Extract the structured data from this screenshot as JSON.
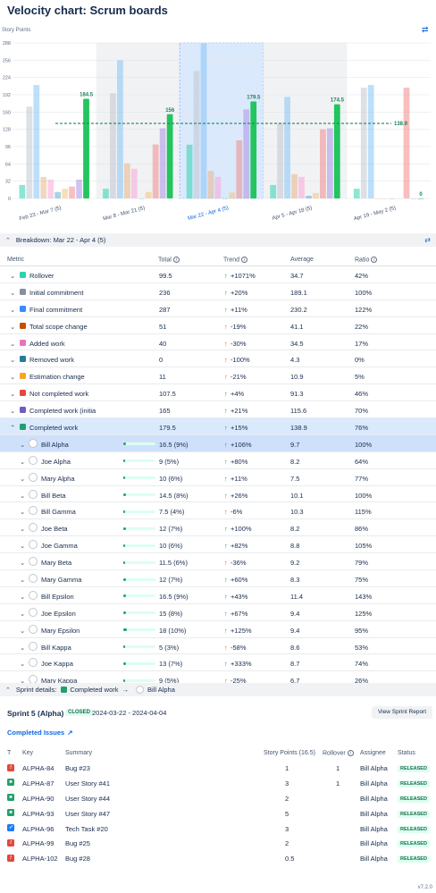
{
  "page": {
    "title": "Velocity chart: Scrum boards",
    "axis_caption": "Story Points",
    "version": "v7.2.0"
  },
  "chart_data": {
    "type": "bar",
    "ylabel": "Story Points",
    "yticks": [
      0,
      32,
      64,
      96,
      128,
      160,
      192,
      224,
      256,
      288
    ],
    "ylim": [
      0,
      288
    ],
    "categories": [
      "Feb 23 - Mar 7 (5)",
      "Mar 8 - Mar 21 (5)",
      "Mar 22 - Apr 4 (5)",
      "Apr 5 - Apr 18 (5)",
      "Apr 19 - May 2 (5)"
    ],
    "selected_category": "Mar 22 - Apr 4 (5)",
    "series": [
      {
        "name": "Rollover",
        "color": "#2cd3b1",
        "values": [
          25,
          18,
          99.5,
          25,
          18
        ]
      },
      {
        "name": "Initial commitment",
        "color": "#c1c7d0",
        "values": [
          170,
          195,
          236,
          140,
          205
        ]
      },
      {
        "name": "Final commitment",
        "color": "#85c5f5",
        "values": [
          210,
          256,
          287,
          188,
          210
        ]
      },
      {
        "name": "Total scope change",
        "color": "#e8b48a",
        "values": [
          40,
          65,
          51,
          45,
          0
        ]
      },
      {
        "name": "Added work",
        "color": "#f7a8d8",
        "values": [
          35,
          55,
          40,
          40,
          0
        ]
      },
      {
        "name": "Removed work",
        "color": "#5fb0c4",
        "values": [
          12,
          0,
          0,
          5,
          0
        ]
      },
      {
        "name": "Estimation change",
        "color": "#f5c57a",
        "values": [
          18,
          12,
          11,
          10,
          0
        ]
      },
      {
        "name": "Not completed work",
        "color": "#f08a8a",
        "values": [
          22,
          100,
          107.5,
          128,
          205
        ]
      },
      {
        "name": "Completed work (initial)",
        "color": "#a994e6",
        "values": [
          35,
          130,
          165,
          130,
          0
        ]
      },
      {
        "name": "Completed work",
        "color": "#22c55e",
        "values": [
          184.5,
          156,
          179.5,
          174.5,
          0
        ]
      }
    ],
    "average": {
      "name": "Average",
      "value": 138.9,
      "color": "#1f845a"
    },
    "bar_labels": [
      {
        "series": "Completed work",
        "values": [
          "184.5",
          "156",
          "179.5",
          "174.5",
          "0"
        ]
      }
    ]
  },
  "breakdown": {
    "title": "Breakdown: Mar 22 - Apr 4 (5)",
    "columns": {
      "metric": "Metric",
      "total": "Total",
      "trend": "Trend",
      "average": "Average",
      "ratio": "Ratio"
    },
    "rows": [
      {
        "name": "Rollover",
        "color": "#2cd3b1",
        "total": "99.5",
        "dir": "up",
        "trend": "+1071%",
        "avg": "34.7",
        "ratio": "42%"
      },
      {
        "name": "Initial commitment",
        "color": "#8590a2",
        "total": "236",
        "dir": "up",
        "trend": "+20%",
        "avg": "189.1",
        "ratio": "100%"
      },
      {
        "name": "Final commitment",
        "color": "#388bff",
        "total": "287",
        "dir": "up",
        "trend": "+11%",
        "avg": "230.2",
        "ratio": "122%"
      },
      {
        "name": "Total scope change",
        "color": "#c25100",
        "total": "51",
        "dir": "down",
        "trend": "-19%",
        "avg": "41.1",
        "ratio": "22%"
      },
      {
        "name": "Added work",
        "color": "#e774bb",
        "total": "40",
        "dir": "down",
        "trend": "-30%",
        "avg": "34.5",
        "ratio": "17%"
      },
      {
        "name": "Removed work",
        "color": "#227d9b",
        "total": "0",
        "dir": "down",
        "trend": "-100%",
        "avg": "4.3",
        "ratio": "0%"
      },
      {
        "name": "Estimation change",
        "color": "#f5a623",
        "total": "11",
        "dir": "down",
        "trend": "-21%",
        "avg": "10.9",
        "ratio": "5%"
      },
      {
        "name": "Not completed work",
        "color": "#e2483d",
        "total": "107.5",
        "dir": "up",
        "trend": "+4%",
        "avg": "91.3",
        "ratio": "46%"
      },
      {
        "name": "Completed work (initia",
        "color": "#6e5dc6",
        "total": "165",
        "dir": "up",
        "trend": "+21%",
        "avg": "115.6",
        "ratio": "70%"
      },
      {
        "name": "Completed work",
        "color": "#22a06b",
        "total": "179.5",
        "dir": "up",
        "trend": "+15%",
        "avg": "138.9",
        "ratio": "76%"
      }
    ],
    "people": [
      {
        "name": "Bill Alpha",
        "total": "16.5 (9%)",
        "pct": 0.09,
        "dir": "up",
        "trend": "+106%",
        "avg": "9.7",
        "ratio": "100%"
      },
      {
        "name": "Joe Alpha",
        "total": "9 (5%)",
        "pct": 0.05,
        "dir": "up",
        "trend": "+80%",
        "avg": "8.2",
        "ratio": "64%"
      },
      {
        "name": "Mary Alpha",
        "total": "10 (6%)",
        "pct": 0.06,
        "dir": "up",
        "trend": "+11%",
        "avg": "7.5",
        "ratio": "77%"
      },
      {
        "name": "Bill Beta",
        "total": "14.5 (8%)",
        "pct": 0.08,
        "dir": "up",
        "trend": "+26%",
        "avg": "10.1",
        "ratio": "100%"
      },
      {
        "name": "Bill Gamma",
        "total": "7.5 (4%)",
        "pct": 0.04,
        "dir": "down",
        "trend": "-6%",
        "avg": "10.3",
        "ratio": "115%"
      },
      {
        "name": "Joe Beta",
        "total": "12 (7%)",
        "pct": 0.07,
        "dir": "up",
        "trend": "+100%",
        "avg": "8.2",
        "ratio": "86%"
      },
      {
        "name": "Joe Gamma",
        "total": "10 (6%)",
        "pct": 0.06,
        "dir": "up",
        "trend": "+82%",
        "avg": "8.8",
        "ratio": "105%"
      },
      {
        "name": "Mary Beta",
        "total": "11.5 (6%)",
        "pct": 0.06,
        "dir": "down",
        "trend": "-36%",
        "avg": "9.2",
        "ratio": "79%"
      },
      {
        "name": "Mary Gamma",
        "total": "12 (7%)",
        "pct": 0.07,
        "dir": "up",
        "trend": "+60%",
        "avg": "8.3",
        "ratio": "75%"
      },
      {
        "name": "Bill Epsilon",
        "total": "16.5 (9%)",
        "pct": 0.09,
        "dir": "up",
        "trend": "+43%",
        "avg": "11.4",
        "ratio": "143%"
      },
      {
        "name": "Joe Epsilon",
        "total": "15 (8%)",
        "pct": 0.08,
        "dir": "up",
        "trend": "+67%",
        "avg": "9.4",
        "ratio": "125%"
      },
      {
        "name": "Mary Epsilon",
        "total": "18 (10%)",
        "pct": 0.1,
        "dir": "up",
        "trend": "+125%",
        "avg": "9.4",
        "ratio": "95%"
      },
      {
        "name": "Bill Kappa",
        "total": "5 (3%)",
        "pct": 0.03,
        "dir": "down",
        "trend": "-58%",
        "avg": "8.6",
        "ratio": "53%"
      },
      {
        "name": "Joe Kappa",
        "total": "13 (7%)",
        "pct": 0.07,
        "dir": "up",
        "trend": "+333%",
        "avg": "8.7",
        "ratio": "74%"
      },
      {
        "name": "Mary Kappa",
        "total": "9 (5%)",
        "pct": 0.05,
        "dir": "down",
        "trend": "-25%",
        "avg": "6.7",
        "ratio": "26%"
      }
    ]
  },
  "sprint": {
    "header_prefix": "Sprint details:",
    "metric": "Completed work",
    "arrow": "→",
    "person": "Bill Alpha",
    "name": "Sprint 5 (Alpha)",
    "status": "CLOSED",
    "dates": "2024-03-22 - 2024-04-04",
    "view_button": "View Sprint Report",
    "completed_issues": "Completed Issues",
    "columns": {
      "t": "T",
      "key": "Key",
      "summary": "Summary",
      "sp": "Story Points (16.5)",
      "rollover": "Rollover",
      "assignee": "Assignee",
      "status": "Status"
    },
    "issues": [
      {
        "type": "bug",
        "icon": "!",
        "color": "#e2483d",
        "key": "ALPHA-84",
        "summary": "Bug #23",
        "sp": "1",
        "rollover": "1",
        "assignee": "Bill Alpha",
        "status": "RELEASED"
      },
      {
        "type": "story",
        "icon": "■",
        "color": "#22a06b",
        "key": "ALPHA-87",
        "summary": "User Story #41",
        "sp": "3",
        "rollover": "1",
        "assignee": "Bill Alpha",
        "status": "RELEASED"
      },
      {
        "type": "story",
        "icon": "■",
        "color": "#22a06b",
        "key": "ALPHA-90",
        "summary": "User Story #44",
        "sp": "2",
        "rollover": "",
        "assignee": "Bill Alpha",
        "status": "RELEASED"
      },
      {
        "type": "story",
        "icon": "■",
        "color": "#22a06b",
        "key": "ALPHA-93",
        "summary": "User Story #47",
        "sp": "5",
        "rollover": "",
        "assignee": "Bill Alpha",
        "status": "RELEASED"
      },
      {
        "type": "task",
        "icon": "✓",
        "color": "#1d7afc",
        "key": "ALPHA-96",
        "summary": "Tech Task #20",
        "sp": "3",
        "rollover": "",
        "assignee": "Bill Alpha",
        "status": "RELEASED"
      },
      {
        "type": "bug",
        "icon": "!",
        "color": "#e2483d",
        "key": "ALPHA-99",
        "summary": "Bug #25",
        "sp": "2",
        "rollover": "",
        "assignee": "Bill Alpha",
        "status": "RELEASED"
      },
      {
        "type": "bug",
        "icon": "!",
        "color": "#e2483d",
        "key": "ALPHA-102",
        "summary": "Bug #28",
        "sp": "0.5",
        "rollover": "",
        "assignee": "Bill Alpha",
        "status": "RELEASED"
      }
    ]
  }
}
